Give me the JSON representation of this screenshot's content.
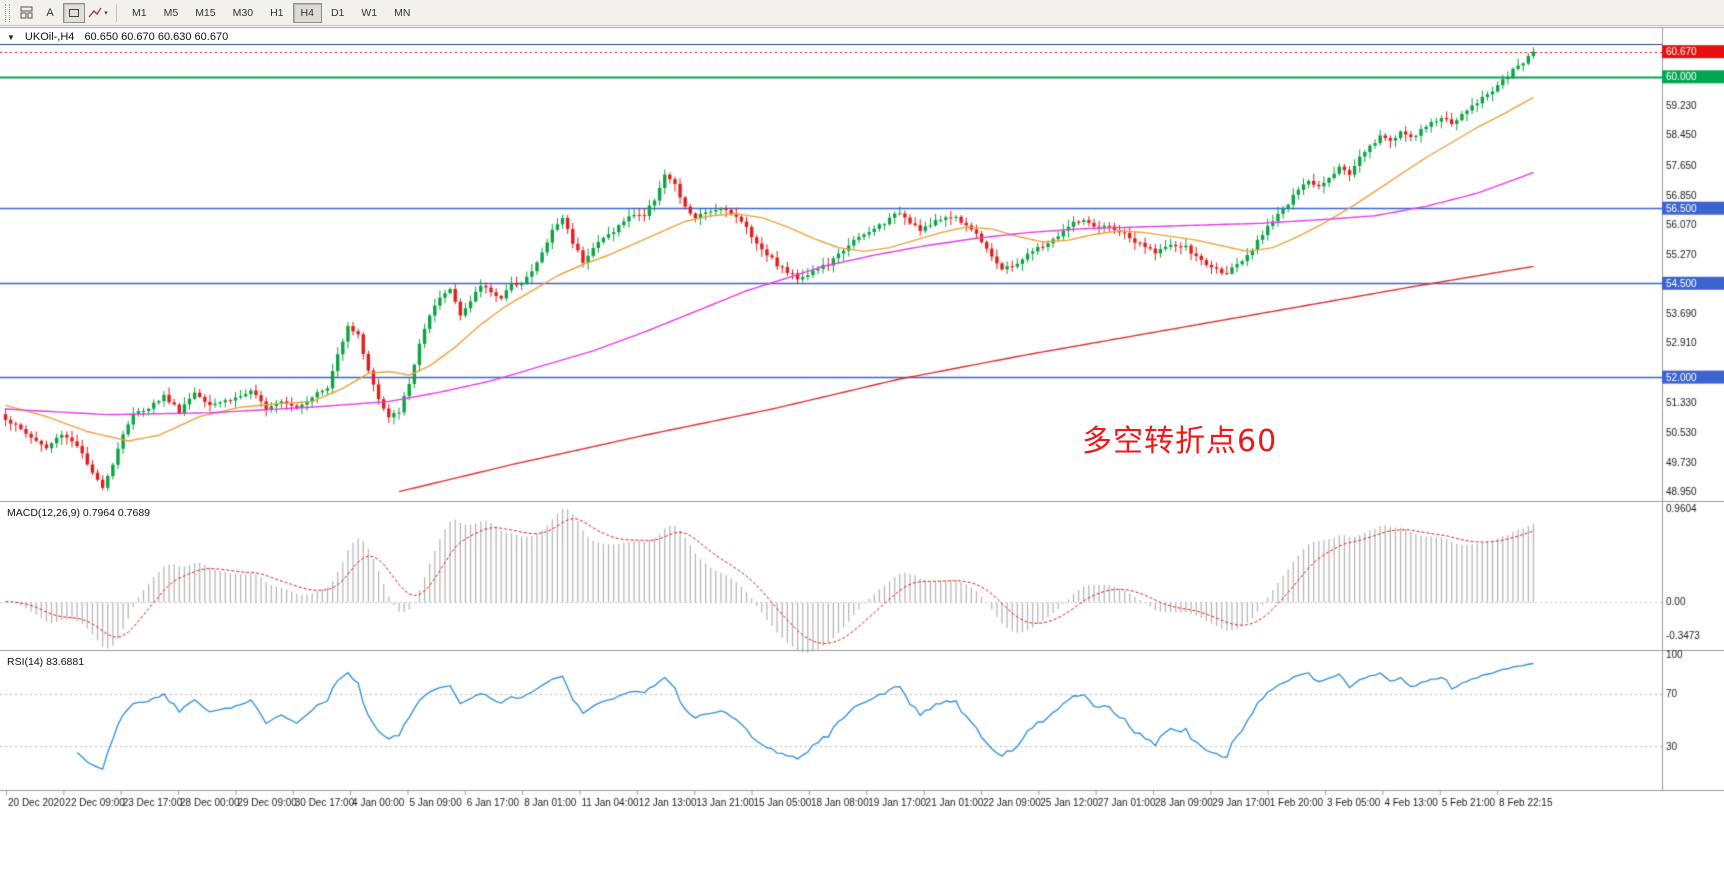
{
  "toolbar": {
    "text_tool_label": "A",
    "timeframes": [
      "M1",
      "M5",
      "M15",
      "M30",
      "H1",
      "H4",
      "D1",
      "W1",
      "MN"
    ],
    "active_timeframe": "H4"
  },
  "header": {
    "symbol_period": "UKOil-,H4",
    "ohlc": "60.650 60.670 60.630 60.670"
  },
  "annotation": {
    "text": "多空转折点60",
    "color": "#f01717"
  },
  "chart_data": {
    "type": "candlestick",
    "symbol": "UKOil-",
    "timeframe": "H4",
    "ohlc_current": {
      "open": 60.65,
      "high": 60.67,
      "low": 60.63,
      "close": 60.67
    },
    "price_axis": {
      "min": 48.78,
      "max": 61.3,
      "tick_labels": [
        "59.230",
        "58.450",
        "57.650",
        "56.850",
        "56.070",
        "55.270",
        "53.690",
        "52.910",
        "51.330",
        "50.530",
        "49.730",
        "48.950"
      ],
      "tick_values": [
        59.23,
        58.45,
        57.65,
        56.85,
        56.07,
        55.27,
        53.69,
        52.91,
        51.33,
        50.53,
        49.73,
        48.95
      ]
    },
    "horizontal_lines": [
      {
        "value": 60.87,
        "color": "#25407f",
        "width": 1.2,
        "badge": ""
      },
      {
        "value": 60.0,
        "color": "#00a651",
        "width": 2,
        "badge": "60.000",
        "badge_color": "#00a651"
      },
      {
        "value": 56.5,
        "color": "#3c64cf",
        "width": 1.5,
        "badge": "56.500",
        "badge_color": "#3c64cf"
      },
      {
        "value": 54.5,
        "color": "#3c64cf",
        "width": 1.5,
        "badge": "54.500",
        "badge_color": "#3c64cf"
      },
      {
        "value": 52.0,
        "color": "#3c64cf",
        "width": 1.5,
        "badge": "52.000",
        "badge_color": "#3c64cf"
      }
    ],
    "current_price": {
      "value": 60.67,
      "label": "60.670",
      "color": "#e51010"
    },
    "candles": {
      "count": 300,
      "up_color": "#0ea344",
      "down_color": "#e51c1c",
      "close_anchors": [
        [
          0,
          50.9
        ],
        [
          4,
          50.5
        ],
        [
          8,
          50.1
        ],
        [
          11,
          50.5
        ],
        [
          14,
          50.2
        ],
        [
          17,
          49.4
        ],
        [
          19,
          49.1
        ],
        [
          21,
          49.7
        ],
        [
          23,
          50.5
        ],
        [
          25,
          51.0
        ],
        [
          28,
          51.2
        ],
        [
          31,
          51.5
        ],
        [
          34,
          51.1
        ],
        [
          37,
          51.6
        ],
        [
          40,
          51.3
        ],
        [
          44,
          51.4
        ],
        [
          48,
          51.6
        ],
        [
          51,
          51.2
        ],
        [
          54,
          51.4
        ],
        [
          57,
          51.2
        ],
        [
          60,
          51.5
        ],
        [
          63,
          51.7
        ],
        [
          65,
          52.6
        ],
        [
          67,
          53.4
        ],
        [
          69,
          53.1
        ],
        [
          71,
          52.2
        ],
        [
          73,
          51.4
        ],
        [
          75,
          50.9
        ],
        [
          77,
          51.1
        ],
        [
          79,
          51.8
        ],
        [
          81,
          52.9
        ],
        [
          83,
          53.6
        ],
        [
          85,
          54.1
        ],
        [
          87,
          54.35
        ],
        [
          89,
          53.7
        ],
        [
          91,
          54.0
        ],
        [
          93,
          54.45
        ],
        [
          95,
          54.3
        ],
        [
          97,
          54.1
        ],
        [
          99,
          54.45
        ],
        [
          101,
          54.55
        ],
        [
          103,
          54.8
        ],
        [
          105,
          55.3
        ],
        [
          107,
          55.9
        ],
        [
          109,
          56.25
        ],
        [
          111,
          55.6
        ],
        [
          113,
          55.1
        ],
        [
          115,
          55.45
        ],
        [
          117,
          55.7
        ],
        [
          119,
          55.9
        ],
        [
          121,
          56.15
        ],
        [
          123,
          56.35
        ],
        [
          125,
          56.3
        ],
        [
          127,
          56.75
        ],
        [
          129,
          57.4
        ],
        [
          131,
          57.1
        ],
        [
          133,
          56.5
        ],
        [
          135,
          56.25
        ],
        [
          137,
          56.35
        ],
        [
          139,
          56.5
        ],
        [
          141,
          56.5
        ],
        [
          143,
          56.25
        ],
        [
          145,
          56.0
        ],
        [
          147,
          55.55
        ],
        [
          149,
          55.3
        ],
        [
          151,
          55.0
        ],
        [
          153,
          54.8
        ],
        [
          155,
          54.65
        ],
        [
          157,
          54.75
        ],
        [
          159,
          54.9
        ],
        [
          161,
          55.0
        ],
        [
          163,
          55.25
        ],
        [
          165,
          55.55
        ],
        [
          167,
          55.7
        ],
        [
          169,
          55.85
        ],
        [
          171,
          56.05
        ],
        [
          173,
          56.2
        ],
        [
          175,
          56.4
        ],
        [
          177,
          56.15
        ],
        [
          179,
          55.95
        ],
        [
          181,
          56.05
        ],
        [
          183,
          56.2
        ],
        [
          185,
          56.3
        ],
        [
          187,
          56.15
        ],
        [
          189,
          55.95
        ],
        [
          191,
          55.65
        ],
        [
          193,
          55.25
        ],
        [
          195,
          54.85
        ],
        [
          197,
          54.95
        ],
        [
          199,
          55.15
        ],
        [
          201,
          55.35
        ],
        [
          203,
          55.5
        ],
        [
          205,
          55.65
        ],
        [
          207,
          55.9
        ],
        [
          209,
          56.1
        ],
        [
          211,
          56.2
        ],
        [
          213,
          55.95
        ],
        [
          215,
          56.0
        ],
        [
          217,
          55.95
        ],
        [
          219,
          55.8
        ],
        [
          221,
          55.6
        ],
        [
          223,
          55.45
        ],
        [
          225,
          55.35
        ],
        [
          227,
          55.45
        ],
        [
          229,
          55.5
        ],
        [
          231,
          55.45
        ],
        [
          233,
          55.2
        ],
        [
          235,
          55.0
        ],
        [
          237,
          54.85
        ],
        [
          239,
          54.8
        ],
        [
          241,
          54.95
        ],
        [
          243,
          55.2
        ],
        [
          245,
          55.6
        ],
        [
          247,
          56.05
        ],
        [
          249,
          56.35
        ],
        [
          251,
          56.6
        ],
        [
          253,
          57.0
        ],
        [
          255,
          57.2
        ],
        [
          257,
          57.1
        ],
        [
          259,
          57.35
        ],
        [
          261,
          57.6
        ],
        [
          263,
          57.4
        ],
        [
          265,
          57.9
        ],
        [
          267,
          58.15
        ],
        [
          269,
          58.4
        ],
        [
          271,
          58.3
        ],
        [
          273,
          58.55
        ],
        [
          275,
          58.35
        ],
        [
          277,
          58.55
        ],
        [
          279,
          58.8
        ],
        [
          281,
          58.9
        ],
        [
          283,
          58.75
        ],
        [
          285,
          59.0
        ],
        [
          287,
          59.2
        ],
        [
          289,
          59.45
        ],
        [
          291,
          59.65
        ],
        [
          293,
          59.9
        ],
        [
          295,
          60.15
        ],
        [
          297,
          60.4
        ],
        [
          299,
          60.67
        ]
      ]
    },
    "moving_averages": [
      {
        "name": "ma-fast-orange",
        "color": "#eda33c",
        "width": 1.4,
        "anchors": [
          [
            0,
            51.25
          ],
          [
            8,
            50.95
          ],
          [
            16,
            50.55
          ],
          [
            24,
            50.3
          ],
          [
            30,
            50.45
          ],
          [
            38,
            50.95
          ],
          [
            46,
            51.2
          ],
          [
            54,
            51.3
          ],
          [
            60,
            51.35
          ],
          [
            66,
            51.7
          ],
          [
            71,
            52.1
          ],
          [
            75,
            52.15
          ],
          [
            79,
            52.05
          ],
          [
            83,
            52.3
          ],
          [
            88,
            52.8
          ],
          [
            93,
            53.4
          ],
          [
            98,
            53.9
          ],
          [
            103,
            54.3
          ],
          [
            108,
            54.7
          ],
          [
            113,
            55.0
          ],
          [
            118,
            55.25
          ],
          [
            123,
            55.55
          ],
          [
            128,
            55.85
          ],
          [
            133,
            56.15
          ],
          [
            138,
            56.3
          ],
          [
            143,
            56.35
          ],
          [
            148,
            56.25
          ],
          [
            153,
            56.0
          ],
          [
            158,
            55.7
          ],
          [
            163,
            55.45
          ],
          [
            168,
            55.35
          ],
          [
            173,
            55.45
          ],
          [
            178,
            55.65
          ],
          [
            183,
            55.85
          ],
          [
            188,
            56.0
          ],
          [
            193,
            55.95
          ],
          [
            198,
            55.75
          ],
          [
            203,
            55.6
          ],
          [
            208,
            55.65
          ],
          [
            213,
            55.8
          ],
          [
            218,
            55.9
          ],
          [
            223,
            55.85
          ],
          [
            228,
            55.75
          ],
          [
            233,
            55.65
          ],
          [
            238,
            55.5
          ],
          [
            243,
            55.35
          ],
          [
            248,
            55.45
          ],
          [
            253,
            55.75
          ],
          [
            258,
            56.1
          ],
          [
            263,
            56.5
          ],
          [
            268,
            56.95
          ],
          [
            273,
            57.4
          ],
          [
            278,
            57.85
          ],
          [
            283,
            58.25
          ],
          [
            288,
            58.65
          ],
          [
            293,
            59.0
          ],
          [
            299,
            59.45
          ]
        ]
      },
      {
        "name": "ma-mid-magenta",
        "color": "#e83ce8",
        "width": 1.4,
        "anchors": [
          [
            0,
            51.15
          ],
          [
            20,
            51.0
          ],
          [
            40,
            51.05
          ],
          [
            60,
            51.2
          ],
          [
            75,
            51.35
          ],
          [
            85,
            51.6
          ],
          [
            95,
            51.9
          ],
          [
            105,
            52.3
          ],
          [
            115,
            52.7
          ],
          [
            125,
            53.2
          ],
          [
            135,
            53.75
          ],
          [
            145,
            54.3
          ],
          [
            152,
            54.6
          ],
          [
            160,
            54.95
          ],
          [
            170,
            55.25
          ],
          [
            180,
            55.5
          ],
          [
            190,
            55.7
          ],
          [
            200,
            55.85
          ],
          [
            210,
            55.95
          ],
          [
            222,
            56.0
          ],
          [
            234,
            56.05
          ],
          [
            246,
            56.1
          ],
          [
            258,
            56.2
          ],
          [
            268,
            56.3
          ],
          [
            278,
            56.55
          ],
          [
            288,
            56.9
          ],
          [
            299,
            57.45
          ]
        ]
      },
      {
        "name": "ma-slow-red",
        "color": "#e03030",
        "width": 1.4,
        "anchors": [
          [
            77,
            48.95
          ],
          [
            100,
            49.7
          ],
          [
            125,
            50.45
          ],
          [
            150,
            51.15
          ],
          [
            175,
            51.95
          ],
          [
            200,
            52.6
          ],
          [
            225,
            53.2
          ],
          [
            250,
            53.8
          ],
          [
            275,
            54.4
          ],
          [
            299,
            54.95
          ]
        ]
      }
    ],
    "macd": {
      "label": "MACD(12,26,9) 0.7964 0.7689",
      "params": [
        12,
        26,
        9
      ],
      "value_main": 0.7964,
      "value_signal": 0.7689,
      "axis_labels": [
        "0.9604",
        "0.00",
        "-0.3473"
      ],
      "axis_values": [
        0.9604,
        0,
        -0.3473
      ],
      "range": [
        -0.46,
        1.0
      ],
      "histogram_color": "#b3b3b3",
      "signal_color": "#e02020"
    },
    "rsi": {
      "label": "RSI(14) 83.6881",
      "period": 14,
      "value": 83.6881,
      "levels": [
        70,
        30
      ],
      "axis_labels": [
        "100",
        "70",
        "30"
      ],
      "axis_values": [
        100,
        70,
        30
      ],
      "range": [
        0,
        100
      ],
      "color": "#2e8fdc"
    },
    "x_labels": [
      "20 Dec 2020",
      "22 Dec 09:00",
      "23 Dec 17:00",
      "28 Dec 00:00",
      "29 Dec 09:00",
      "30 Dec 17:00",
      "4 Jan 00:00",
      "5 Jan 09:00",
      "6 Jan 17:00",
      "8 Jan 01:00",
      "11 Jan 04:00",
      "12 Jan 13:00",
      "13 Jan 21:00",
      "15 Jan 05:00",
      "18 Jan 08:00",
      "19 Jan 17:00",
      "21 Jan 01:00",
      "22 Jan 09:00",
      "25 Jan 12:00",
      "27 Jan 01:00",
      "28 Jan 09:00",
      "29 Jan 17:00",
      "1 Feb 20:00",
      "3 Feb 05:00",
      "4 Feb 13:00",
      "5 Feb 21:00",
      "8 Feb 22:15"
    ]
  }
}
